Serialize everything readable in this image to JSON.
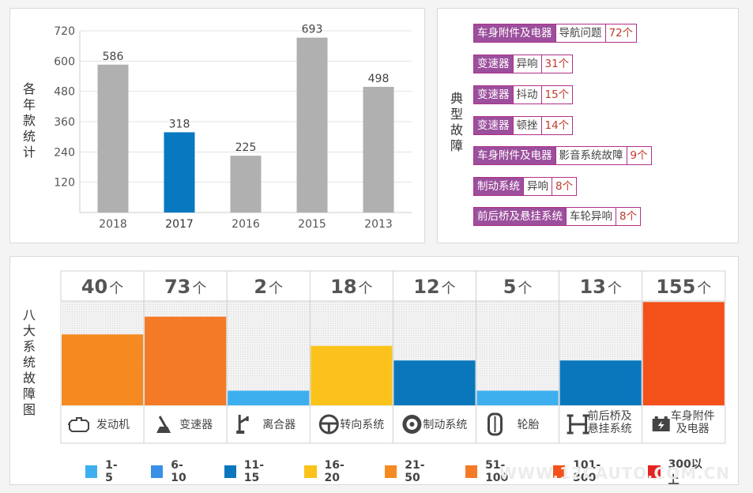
{
  "chart_data": [
    {
      "type": "bar",
      "ylabel": "各年款统计",
      "categories": [
        "2018",
        "2017",
        "2016",
        "2015",
        "2013"
      ],
      "values": [
        586,
        318,
        225,
        693,
        498
      ],
      "highlight_index": 1,
      "ylim": [
        0,
        720
      ],
      "yticks": [
        120,
        240,
        360,
        480,
        600,
        720
      ],
      "colors": {
        "default": "#b0b0b0",
        "highlight": "#0879c1"
      },
      "grid": true
    },
    {
      "type": "bar",
      "ylabel": "八大系统故障图",
      "categories": [
        "发动机",
        "变速器",
        "离合器",
        "转向系统",
        "制动系统",
        "轮胎",
        "前后桥及悬挂系统",
        "车身附件及电器"
      ],
      "values": [
        40,
        73,
        2,
        18,
        12,
        5,
        13,
        155
      ],
      "count_suffix": "个",
      "fill_levels": [
        0.68,
        0.85,
        0.14,
        0.57,
        0.43,
        0.14,
        0.43,
        0.99
      ],
      "bar_colors": [
        "#f58a21",
        "#f47a28",
        "#3dafef",
        "#fbc21b",
        "#0a77bd",
        "#3dafef",
        "#0a77bd",
        "#f4501a"
      ],
      "legend": [
        {
          "label": "1-5",
          "color": "#3dafef"
        },
        {
          "label": "6-10",
          "color": "#3a8fe6"
        },
        {
          "label": "11-15",
          "color": "#0a77bd"
        },
        {
          "label": "16-20",
          "color": "#fbc21b"
        },
        {
          "label": "21-50",
          "color": "#f58a21"
        },
        {
          "label": "51-100",
          "color": "#f47a28"
        },
        {
          "label": "101-300",
          "color": "#f4501a"
        },
        {
          "label": "300以上",
          "color": "#e52421"
        }
      ]
    }
  ],
  "faults": {
    "title": "典型故障",
    "items": [
      {
        "category": "车身附件及电器",
        "issue": "导航问题",
        "count": "72个"
      },
      {
        "category": "变速器",
        "issue": "异响",
        "count": "31个"
      },
      {
        "category": "变速器",
        "issue": "抖动",
        "count": "15个"
      },
      {
        "category": "变速器",
        "issue": "顿挫",
        "count": "14个"
      },
      {
        "category": "车身附件及电器",
        "issue": "影音系统故障",
        "count": "9个"
      },
      {
        "category": "制动系统",
        "issue": "异响",
        "count": "8个"
      },
      {
        "category": "前后桥及悬挂系统",
        "issue": "车轮异响",
        "count": "8个"
      }
    ]
  },
  "system_labels": [
    [
      "发动机"
    ],
    [
      "变速器"
    ],
    [
      "离合器"
    ],
    [
      "转向系统"
    ],
    [
      "制动系统"
    ],
    [
      "轮胎"
    ],
    [
      "前后桥及",
      "悬挂系统"
    ],
    [
      "车身附件",
      "及电器"
    ]
  ],
  "icons": [
    "engine-icon",
    "gear-shift-icon",
    "clutch-pedal-icon",
    "steering-wheel-icon",
    "brake-disc-icon",
    "tire-icon",
    "suspension-icon",
    "battery-icon"
  ],
  "watermark": "WWW.12CAUTO.COM.CN"
}
